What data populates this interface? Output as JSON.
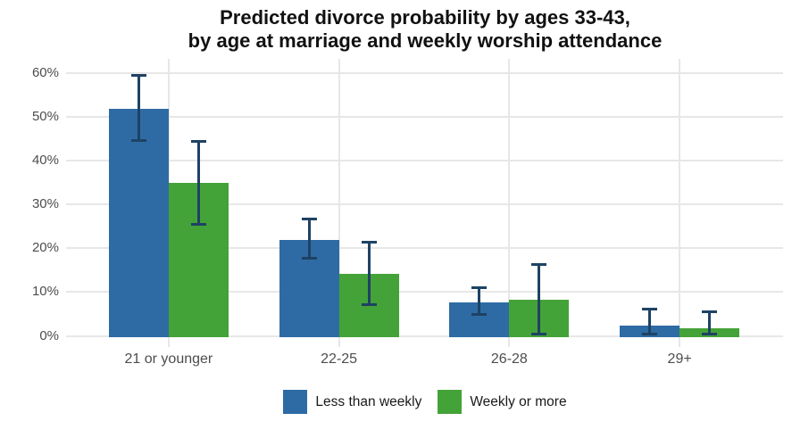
{
  "title": {
    "line1": "Predicted divorce probability by ages 33-43,",
    "line2": "by age at marriage and weekly worship attendance"
  },
  "chart_data": {
    "type": "bar",
    "title": "Predicted divorce probability by ages 33-43, by age at marriage and weekly worship attendance",
    "categories": [
      "21 or younger",
      "22-25",
      "26-28",
      "29+"
    ],
    "series": [
      {
        "name": "Less than weekly",
        "color": "#2e6ba4",
        "values": [
          51.8,
          21.9,
          7.7,
          2.4
        ],
        "err_low": [
          44.7,
          17.7,
          4.9,
          0.4
        ],
        "err_high": [
          59.5,
          26.6,
          10.9,
          6.1
        ]
      },
      {
        "name": "Weekly or more",
        "color": "#44a338",
        "values": [
          34.9,
          14.2,
          8.3,
          1.8
        ],
        "err_low": [
          25.4,
          7.1,
          0.4,
          0.4
        ],
        "err_high": [
          44.4,
          21.3,
          16.4,
          5.5
        ]
      }
    ],
    "xlabel": "",
    "ylabel": "",
    "ylim": [
      0,
      60
    ],
    "ytick_labels": [
      "0%",
      "10%",
      "20%",
      "30%",
      "40%",
      "50%",
      "60%"
    ],
    "grid": "horizontal gridlines + vertical gridline at each category center",
    "legend_position": "bottom",
    "error_bars": true,
    "error_bar_color": "#1e4264",
    "gridline_color": "#e7e7e7",
    "axis_text_color": "#4d4d4d",
    "background_color": "#ffffff"
  }
}
